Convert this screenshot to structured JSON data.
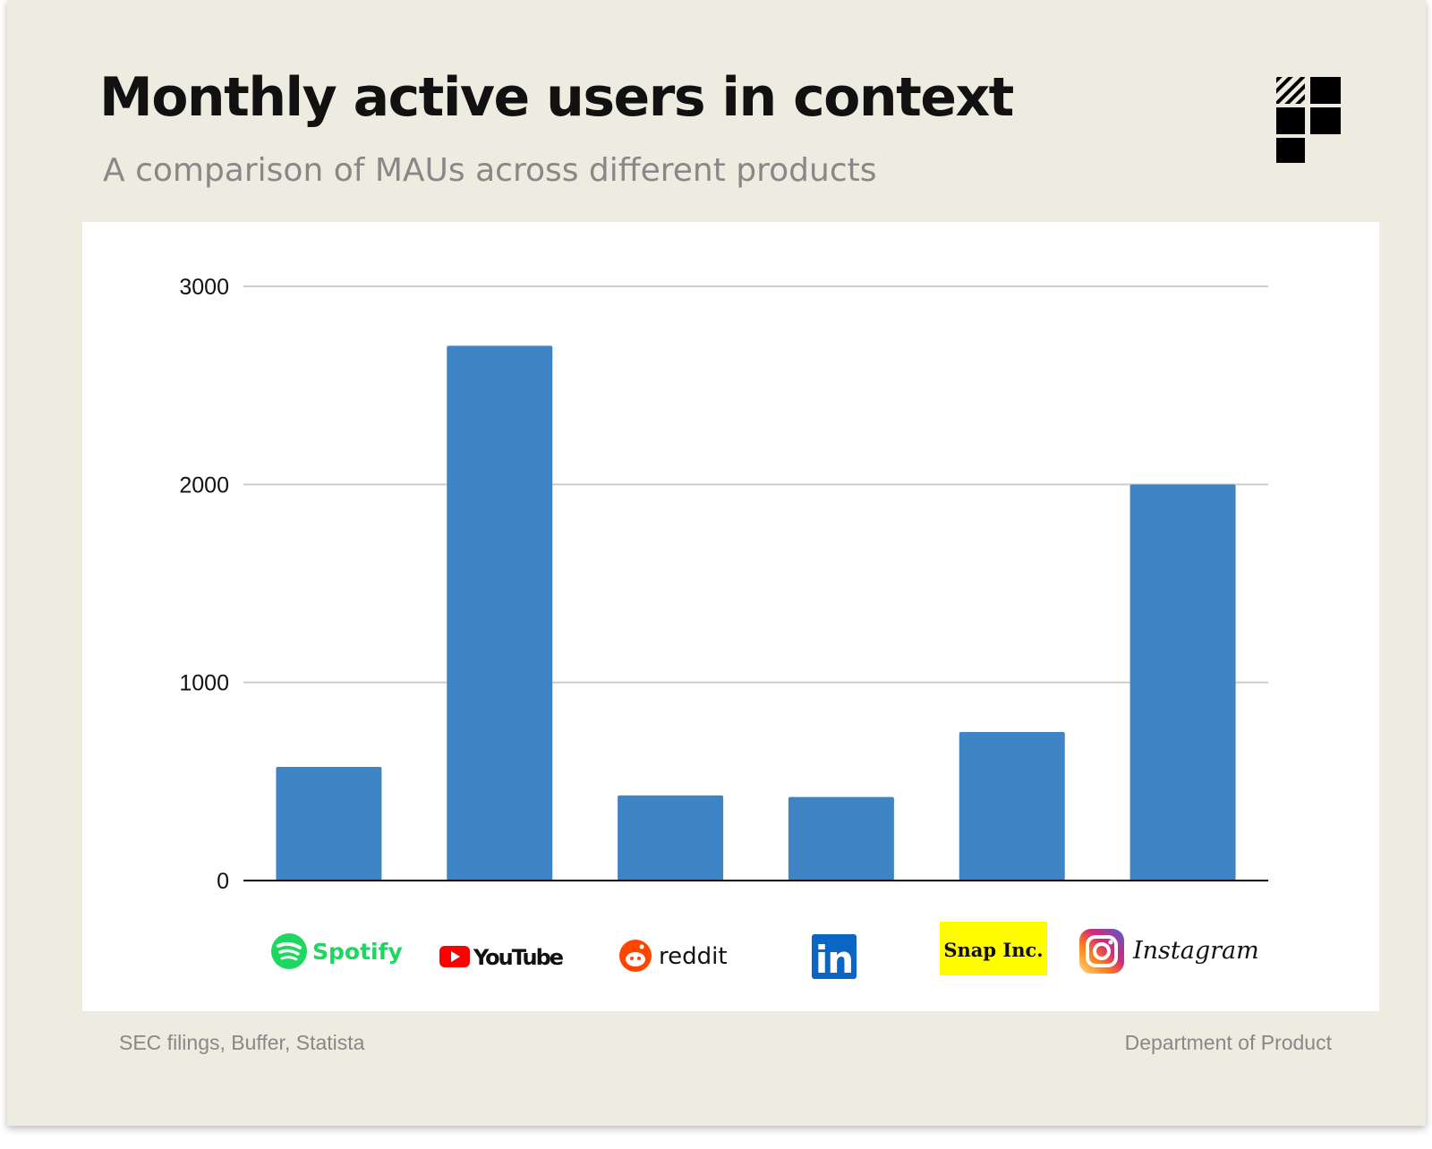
{
  "header": {
    "title": "Monthly active users in context",
    "subtitle": "A comparison of MAUs across different products"
  },
  "footer": {
    "source": "SEC filings, Buffer, Statista",
    "credit": "Department of Product"
  },
  "brand_icon": "department-of-product-logo-icon",
  "chart_data": {
    "type": "bar",
    "categories": [
      "Spotify",
      "YouTube",
      "reddit",
      "LinkedIn",
      "Snap Inc.",
      "Instagram"
    ],
    "category_labels_printed": [
      "Spotify",
      "YouTube",
      "reddit",
      "in",
      "Snap Inc.",
      "Instagram"
    ],
    "category_icons": [
      "spotify-logo-icon",
      "youtube-logo-icon",
      "reddit-logo-icon",
      "linkedin-logo-icon",
      "snap-inc-logo-icon",
      "instagram-logo-icon"
    ],
    "values": [
      574,
      2700,
      430,
      422,
      750,
      2000
    ],
    "ylim": [
      0,
      3000
    ],
    "yticks": [
      0,
      1000,
      2000,
      3000
    ],
    "ytick_labels": [
      "0",
      "1000",
      "2000",
      "3000"
    ],
    "grid": true,
    "legend": "none",
    "colors": {
      "bar": "#3f85c6",
      "grid": "#cccccc",
      "axis": "#000000",
      "spotify": "#1ed760",
      "youtube": "#ff0000",
      "reddit": "#ff4500",
      "linkedin": "#0a66c2",
      "snap_bg": "#fffc00"
    }
  }
}
